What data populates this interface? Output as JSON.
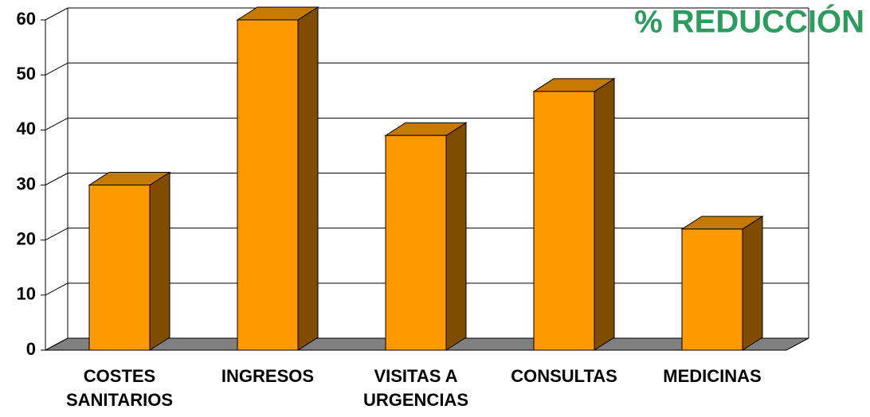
{
  "chart_data": {
    "type": "bar3d",
    "title": "% REDUCCIÓN",
    "categories": [
      "COSTES SANITARIOS",
      "INGRESOS",
      "VISITAS A URGENCIAS",
      "CONSULTAS",
      "MEDICINAS"
    ],
    "values": [
      30,
      60,
      39,
      47,
      22
    ],
    "color": "#ff9900",
    "ylim": [
      0,
      60
    ],
    "yticks": [
      0,
      10,
      20,
      30,
      40,
      50,
      60
    ],
    "grid": true
  }
}
